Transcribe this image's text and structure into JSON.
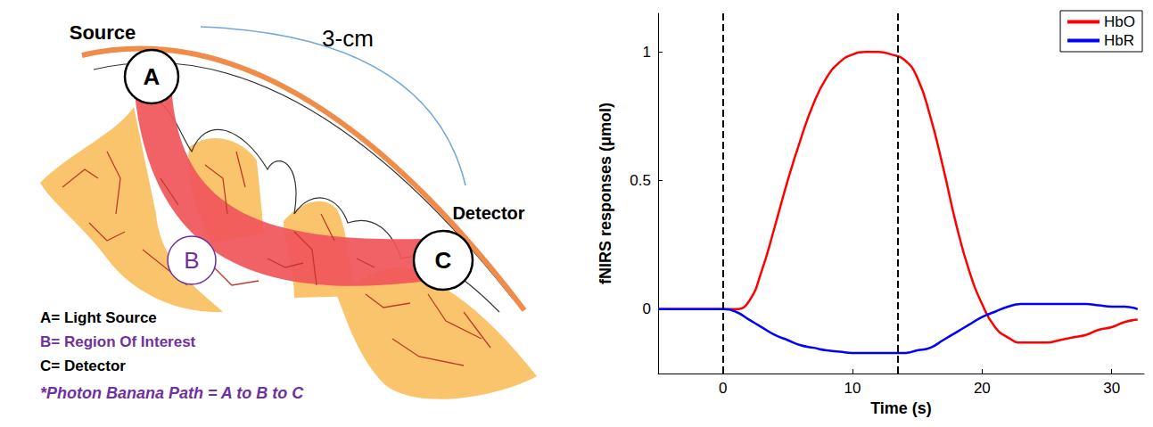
{
  "diagram": {
    "source_label": "Source",
    "distance_label": "3-cm",
    "detector_label": "Detector",
    "nodes": [
      {
        "letter": "A"
      },
      {
        "letter": "B"
      },
      {
        "letter": "C"
      }
    ],
    "key": [
      "A= Light Source",
      "B= Region Of Interest",
      "C= Detector"
    ],
    "note": "*Photon Banana Path = A to B to C"
  },
  "chart_data": {
    "type": "line",
    "x_label": "Time (s)",
    "y_label": "fNIRS responses (μmol)",
    "x": [
      -5,
      0,
      1,
      2,
      3,
      4,
      5,
      6,
      7,
      8,
      9,
      10,
      11,
      12,
      13,
      14,
      15,
      16,
      17,
      18,
      19,
      20,
      21,
      22,
      23,
      24,
      25,
      26,
      27,
      28,
      29,
      30,
      31,
      32
    ],
    "series": [
      {
        "name": "HbO",
        "color": "#ff0000",
        "values": [
          0,
          0,
          0,
          0.03,
          0.15,
          0.32,
          0.5,
          0.66,
          0.8,
          0.9,
          0.96,
          0.99,
          1.0,
          1.0,
          0.99,
          0.97,
          0.9,
          0.75,
          0.55,
          0.33,
          0.15,
          0.02,
          -0.07,
          -0.11,
          -0.13,
          -0.13,
          -0.13,
          -0.12,
          -0.11,
          -0.1,
          -0.08,
          -0.07,
          -0.05,
          -0.04
        ]
      },
      {
        "name": "HbR",
        "color": "#0000ff",
        "values": [
          0,
          0,
          -0.01,
          -0.04,
          -0.07,
          -0.1,
          -0.12,
          -0.14,
          -0.15,
          -0.16,
          -0.165,
          -0.17,
          -0.17,
          -0.17,
          -0.17,
          -0.17,
          -0.16,
          -0.15,
          -0.12,
          -0.09,
          -0.06,
          -0.03,
          -0.01,
          0.01,
          0.02,
          0.02,
          0.02,
          0.02,
          0.02,
          0.02,
          0.015,
          0.01,
          0.01,
          0
        ]
      }
    ],
    "vlines": [
      0,
      13.5
    ],
    "xlim": [
      -5,
      32.5
    ],
    "xticks": [
      0,
      10,
      20,
      30
    ],
    "ylim": [
      -0.25,
      1.15
    ],
    "yticks": [
      0,
      0.5,
      1
    ],
    "grid": false,
    "legend": "upper right"
  }
}
